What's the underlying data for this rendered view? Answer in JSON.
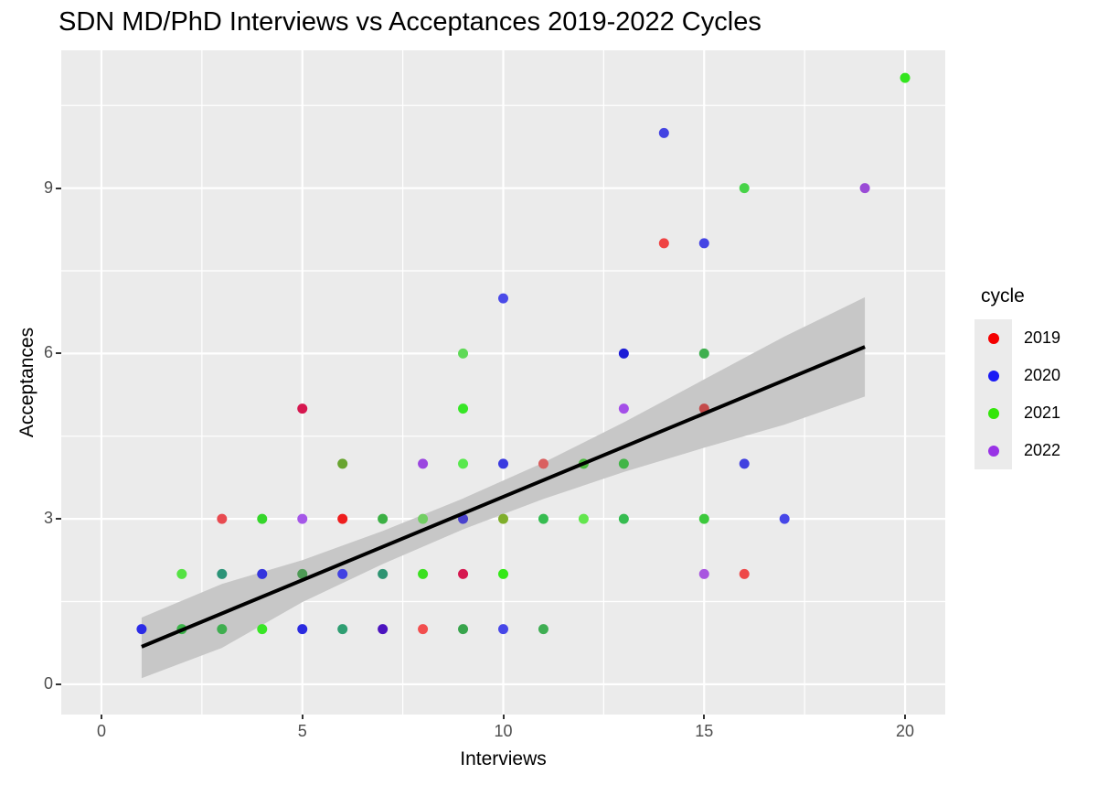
{
  "title": "SDN MD/PhD Interviews vs Acceptances 2019-2022 Cycles",
  "chart_data": {
    "type": "scatter",
    "title": "SDN MD/PhD Interviews vs Acceptances 2019-2022 Cycles",
    "xlabel": "Interviews",
    "ylabel": "Acceptances",
    "xlim": [
      -1,
      21
    ],
    "ylim": [
      -0.55,
      11.5
    ],
    "x_major_ticks": [
      0,
      5,
      10,
      15,
      20
    ],
    "x_minor_gridlines": [
      2.5,
      7.5,
      12.5,
      17.5
    ],
    "y_major_ticks": [
      0,
      3,
      6,
      9
    ],
    "y_minor_gridlines": [
      1.5,
      4.5,
      7.5,
      10.5
    ],
    "grid": true,
    "panel_bg": "#EBEBEB",
    "grid_color": "#FFFFFF",
    "tick_color": "#333333",
    "tick_label_color": "#4D4D4D",
    "marker_radius": 5.5,
    "legend": {
      "title": "cycle",
      "position": "right",
      "entries": [
        {
          "label": "2019",
          "color": "#F40000"
        },
        {
          "label": "2020",
          "color": "#1A1AF5"
        },
        {
          "label": "2021",
          "color": "#33E60A"
        },
        {
          "label": "2022",
          "color": "#9933E6"
        }
      ]
    },
    "smooth_line": {
      "color": "#000000",
      "width": 4,
      "x1": 1.0,
      "y1": 0.68,
      "x2": 19.0,
      "y2": 6.12
    },
    "confidence_band": {
      "color": "#C7C7C7",
      "polygon": [
        [
          1,
          1.21
        ],
        [
          3,
          1.82
        ],
        [
          5,
          2.25
        ],
        [
          7,
          2.78
        ],
        [
          9,
          3.37
        ],
        [
          11,
          4.02
        ],
        [
          13,
          4.75
        ],
        [
          15,
          5.53
        ],
        [
          17,
          6.31
        ],
        [
          19,
          7.02
        ],
        [
          19,
          5.22
        ],
        [
          17,
          4.71
        ],
        [
          15,
          4.29
        ],
        [
          13,
          3.85
        ],
        [
          11,
          3.36
        ],
        [
          9,
          2.81
        ],
        [
          7,
          2.18
        ],
        [
          5,
          1.49
        ],
        [
          3,
          0.66
        ],
        [
          1,
          0.11
        ]
      ]
    },
    "points": [
      {
        "x": 1,
        "y": 1,
        "color": "#2B2BE6",
        "cycle": "2020"
      },
      {
        "x": 2,
        "y": 1,
        "color": "#3CB44A",
        "cycle": "2021"
      },
      {
        "x": 3,
        "y": 1,
        "color": "#3FAE4F",
        "cycle": "2021"
      },
      {
        "x": 4,
        "y": 1,
        "color": "#39E626",
        "cycle": "2021"
      },
      {
        "x": 5,
        "y": 1,
        "color": "#2B2BE0",
        "cycle": "2020"
      },
      {
        "x": 6,
        "y": 1,
        "color": "#2F9E72",
        "cycle": "2020+2021"
      },
      {
        "x": 7,
        "y": 1,
        "color": "#4B13BF",
        "cycle": "2020+2022"
      },
      {
        "x": 8,
        "y": 1,
        "color": "#F24E4E",
        "cycle": "2019"
      },
      {
        "x": 9,
        "y": 1,
        "color": "#38A44C",
        "cycle": "2021"
      },
      {
        "x": 10,
        "y": 1,
        "color": "#4747E8",
        "cycle": "2020"
      },
      {
        "x": 11,
        "y": 1,
        "color": "#3FAE53",
        "cycle": "2021"
      },
      {
        "x": 2,
        "y": 2,
        "color": "#55E243",
        "cycle": "2021"
      },
      {
        "x": 3,
        "y": 2,
        "color": "#2C9478",
        "cycle": "2020+2021"
      },
      {
        "x": 4,
        "y": 2,
        "color": "#3434DD",
        "cycle": "2020"
      },
      {
        "x": 5,
        "y": 2,
        "color": "#4D9A55",
        "cycle": "2021"
      },
      {
        "x": 6,
        "y": 2,
        "color": "#4040E2",
        "cycle": "2020"
      },
      {
        "x": 7,
        "y": 2,
        "color": "#2E9472",
        "cycle": "2020+2021"
      },
      {
        "x": 8,
        "y": 2,
        "color": "#3BE01F",
        "cycle": "2021"
      },
      {
        "x": 9,
        "y": 2,
        "color": "#D6174F",
        "cycle": "2019+2022"
      },
      {
        "x": 10,
        "y": 2,
        "color": "#33E816",
        "cycle": "2021"
      },
      {
        "x": 15,
        "y": 2,
        "color": "#A855E0",
        "cycle": "2022"
      },
      {
        "x": 16,
        "y": 2,
        "color": "#EE4848",
        "cycle": "2019"
      },
      {
        "x": 3,
        "y": 3,
        "color": "#E84A50",
        "cycle": "2019"
      },
      {
        "x": 4,
        "y": 3,
        "color": "#35D62A",
        "cycle": "2021"
      },
      {
        "x": 5,
        "y": 3,
        "color": "#A557E8",
        "cycle": "2022"
      },
      {
        "x": 6,
        "y": 3,
        "color": "#EE1D1D",
        "cycle": "2019"
      },
      {
        "x": 7,
        "y": 3,
        "color": "#3CB044",
        "cycle": "2021"
      },
      {
        "x": 8,
        "y": 3,
        "color": "#72CE63",
        "cycle": "2021"
      },
      {
        "x": 9,
        "y": 3,
        "color": "#4A42CE",
        "cycle": "2020"
      },
      {
        "x": 10,
        "y": 3,
        "color": "#7FAE2B",
        "cycle": "2019+2021"
      },
      {
        "x": 11,
        "y": 3,
        "color": "#36BC50",
        "cycle": "2021"
      },
      {
        "x": 12,
        "y": 3,
        "color": "#63E64E",
        "cycle": "2021"
      },
      {
        "x": 13,
        "y": 3,
        "color": "#36BC50",
        "cycle": "2021"
      },
      {
        "x": 15,
        "y": 3,
        "color": "#3CC93C",
        "cycle": "2021"
      },
      {
        "x": 17,
        "y": 3,
        "color": "#4747E8",
        "cycle": "2020"
      },
      {
        "x": 6,
        "y": 4,
        "color": "#68A42F",
        "cycle": "2019+2021"
      },
      {
        "x": 8,
        "y": 4,
        "color": "#9B45E0",
        "cycle": "2022"
      },
      {
        "x": 9,
        "y": 4,
        "color": "#58E84D",
        "cycle": "2021"
      },
      {
        "x": 10,
        "y": 4,
        "color": "#3A3AE0",
        "cycle": "2020"
      },
      {
        "x": 11,
        "y": 4,
        "color": "#D95F5F",
        "cycle": "2019"
      },
      {
        "x": 12,
        "y": 4,
        "color": "#4CBB3F",
        "cycle": "2021"
      },
      {
        "x": 13,
        "y": 4,
        "color": "#42B547",
        "cycle": "2021"
      },
      {
        "x": 16,
        "y": 4,
        "color": "#4040E0",
        "cycle": "2020"
      },
      {
        "x": 5,
        "y": 5,
        "color": "#D6174F",
        "cycle": "2019+2022"
      },
      {
        "x": 9,
        "y": 5,
        "color": "#37E626",
        "cycle": "2021"
      },
      {
        "x": 13,
        "y": 5,
        "color": "#A44FE8",
        "cycle": "2022"
      },
      {
        "x": 15,
        "y": 5,
        "color": "#C44A4A",
        "cycle": "2019"
      },
      {
        "x": 9,
        "y": 6,
        "color": "#5FD957",
        "cycle": "2021"
      },
      {
        "x": 13,
        "y": 6,
        "color": "#1D1DD6",
        "cycle": "2020"
      },
      {
        "x": 15,
        "y": 6,
        "color": "#3FAF4F",
        "cycle": "2021"
      },
      {
        "x": 10,
        "y": 7,
        "color": "#4A4AE8",
        "cycle": "2020"
      },
      {
        "x": 14,
        "y": 8,
        "color": "#EF4343",
        "cycle": "2019"
      },
      {
        "x": 15,
        "y": 8,
        "color": "#4444E4",
        "cycle": "2020"
      },
      {
        "x": 16,
        "y": 9,
        "color": "#47D348",
        "cycle": "2021"
      },
      {
        "x": 19,
        "y": 9,
        "color": "#9A4BD6",
        "cycle": "2022"
      },
      {
        "x": 14,
        "y": 10,
        "color": "#4343E2",
        "cycle": "2020"
      },
      {
        "x": 20,
        "y": 11,
        "color": "#33E51E",
        "cycle": "2021"
      }
    ]
  }
}
